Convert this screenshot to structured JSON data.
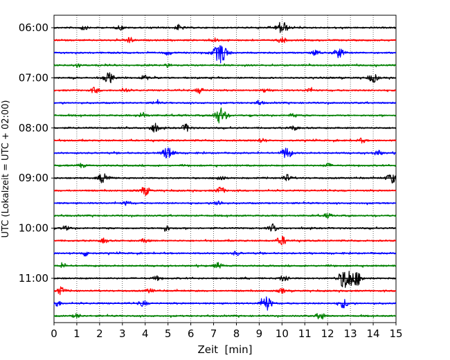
{
  "chart_data": {
    "type": "line",
    "subtype": "helicorder",
    "xlabel": "Zeit  [min]",
    "ylabel": "UTC (Lokalzeit = UTC + 02:00)",
    "xlim": [
      0,
      15
    ],
    "x_ticks": [
      "0",
      "1",
      "2",
      "3",
      "4",
      "5",
      "6",
      "7",
      "8",
      "9",
      "10",
      "11",
      "12",
      "13",
      "14",
      "15"
    ],
    "y_tick_labels": [
      "06:00",
      "07:00",
      "08:00",
      "09:00",
      "10:00",
      "11:00"
    ],
    "grid": "vertical dotted",
    "line_colors": [
      "#000000",
      "#ff0000",
      "#0000ff",
      "#008000"
    ],
    "traces": [
      {
        "start": "06:00",
        "color": "#000000",
        "events": [
          [
            10.0,
            9
          ],
          [
            5.5,
            4
          ],
          [
            2.9,
            3
          ],
          [
            1.3,
            3
          ]
        ]
      },
      {
        "start": "06:15",
        "color": "#ff0000",
        "events": [
          [
            3.3,
            4
          ],
          [
            10.0,
            4
          ],
          [
            7.1,
            3
          ]
        ]
      },
      {
        "start": "06:30",
        "color": "#0000ff",
        "events": [
          [
            7.3,
            14
          ],
          [
            12.5,
            7
          ],
          [
            11.5,
            4
          ],
          [
            5.0,
            3
          ]
        ]
      },
      {
        "start": "06:45",
        "color": "#008000",
        "events": [
          [
            1.0,
            3
          ],
          [
            5.0,
            2
          ]
        ]
      },
      {
        "start": "07:00",
        "color": "#000000",
        "events": [
          [
            2.4,
            7
          ],
          [
            14.0,
            6
          ],
          [
            4.0,
            3
          ]
        ]
      },
      {
        "start": "07:15",
        "color": "#ff0000",
        "events": [
          [
            1.8,
            4
          ],
          [
            3.1,
            3
          ],
          [
            6.4,
            4
          ],
          [
            9.3,
            3
          ],
          [
            11.2,
            3
          ]
        ]
      },
      {
        "start": "07:30",
        "color": "#0000ff",
        "events": [
          [
            4.5,
            3
          ],
          [
            9.0,
            3
          ]
        ]
      },
      {
        "start": "07:45",
        "color": "#008000",
        "events": [
          [
            7.3,
            11
          ],
          [
            3.9,
            4
          ],
          [
            10.5,
            3
          ]
        ]
      },
      {
        "start": "08:00",
        "color": "#000000",
        "events": [
          [
            4.4,
            6
          ],
          [
            5.8,
            5
          ],
          [
            10.5,
            3
          ]
        ]
      },
      {
        "start": "08:15",
        "color": "#ff0000",
        "events": [
          [
            9.1,
            3
          ],
          [
            13.5,
            3
          ]
        ]
      },
      {
        "start": "08:30",
        "color": "#0000ff",
        "events": [
          [
            5.0,
            9
          ],
          [
            10.2,
            8
          ],
          [
            14.2,
            4
          ]
        ]
      },
      {
        "start": "08:45",
        "color": "#008000",
        "events": [
          [
            1.2,
            3
          ],
          [
            12.0,
            3
          ]
        ]
      },
      {
        "start": "09:00",
        "color": "#000000",
        "events": [
          [
            2.2,
            8
          ],
          [
            14.8,
            7
          ],
          [
            10.2,
            5
          ],
          [
            7.3,
            4
          ]
        ]
      },
      {
        "start": "09:15",
        "color": "#ff0000",
        "events": [
          [
            4.0,
            6
          ],
          [
            7.3,
            5
          ]
        ]
      },
      {
        "start": "09:30",
        "color": "#0000ff",
        "events": [
          [
            7.2,
            4
          ],
          [
            3.2,
            3
          ]
        ]
      },
      {
        "start": "09:45",
        "color": "#008000",
        "events": [
          [
            12.0,
            3
          ]
        ]
      },
      {
        "start": "10:00",
        "color": "#000000",
        "events": [
          [
            4.9,
            4
          ],
          [
            9.6,
            5
          ],
          [
            0.5,
            3
          ]
        ]
      },
      {
        "start": "10:15",
        "color": "#ff0000",
        "events": [
          [
            10.0,
            6
          ],
          [
            4.0,
            3
          ],
          [
            2.2,
            3
          ]
        ]
      },
      {
        "start": "10:30",
        "color": "#0000ff",
        "events": [
          [
            1.4,
            4
          ],
          [
            8.0,
            3
          ]
        ]
      },
      {
        "start": "10:45",
        "color": "#008000",
        "events": [
          [
            7.2,
            4
          ],
          [
            0.4,
            3
          ]
        ]
      },
      {
        "start": "11:00",
        "color": "#000000",
        "events": [
          [
            12.8,
            15
          ],
          [
            13.3,
            9
          ],
          [
            10.1,
            5
          ],
          [
            4.5,
            3
          ]
        ]
      },
      {
        "start": "11:15",
        "color": "#ff0000",
        "events": [
          [
            0.3,
            5
          ],
          [
            10.0,
            3
          ],
          [
            4.2,
            3
          ]
        ]
      },
      {
        "start": "11:30",
        "color": "#0000ff",
        "events": [
          [
            9.3,
            10
          ],
          [
            12.7,
            6
          ],
          [
            0.1,
            5
          ],
          [
            3.9,
            4
          ]
        ]
      },
      {
        "start": "11:45",
        "color": "#008000",
        "events": [
          [
            11.7,
            5
          ],
          [
            1.0,
            3
          ]
        ]
      }
    ]
  }
}
